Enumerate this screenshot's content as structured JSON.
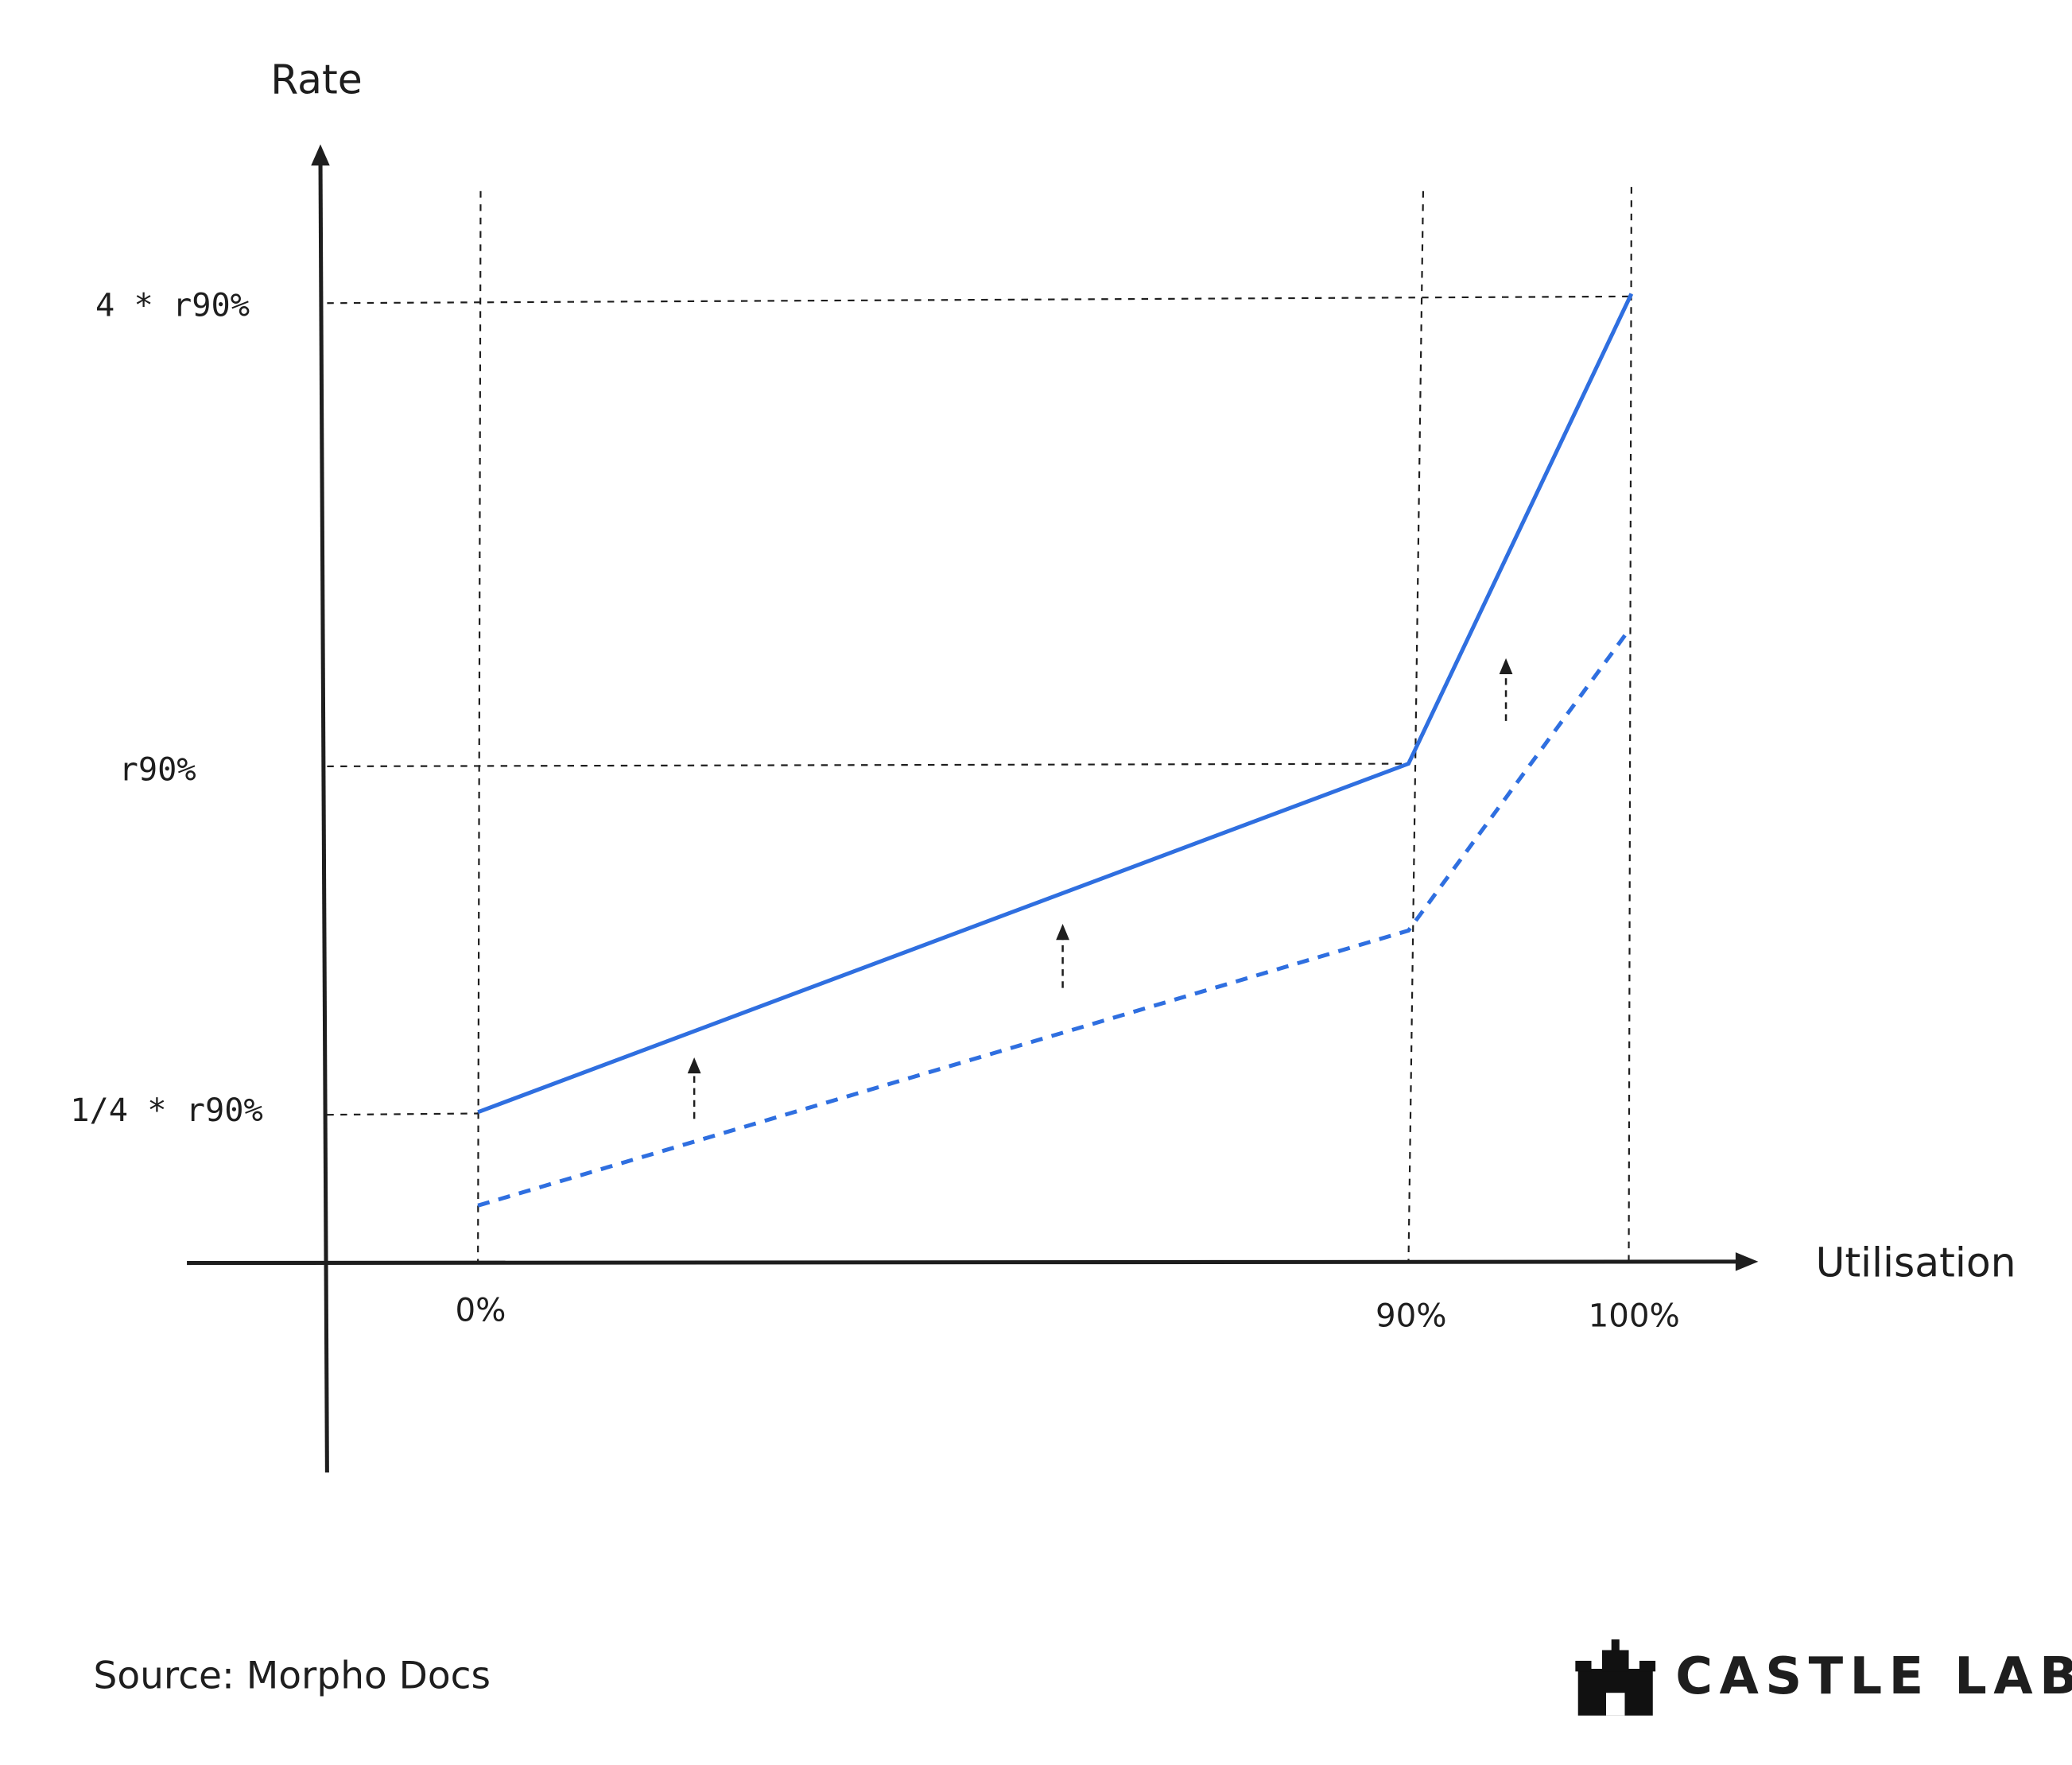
{
  "axes": {
    "y_label": "Rate",
    "x_label": "Utilisation"
  },
  "y_labels": [
    "4 * r90%",
    "r90%",
    "1/4 * r90%"
  ],
  "x_labels": [
    "0%",
    "90%",
    "100%"
  ],
  "source": "Source: Morpho Docs",
  "logo": "CASTLE LABS"
}
